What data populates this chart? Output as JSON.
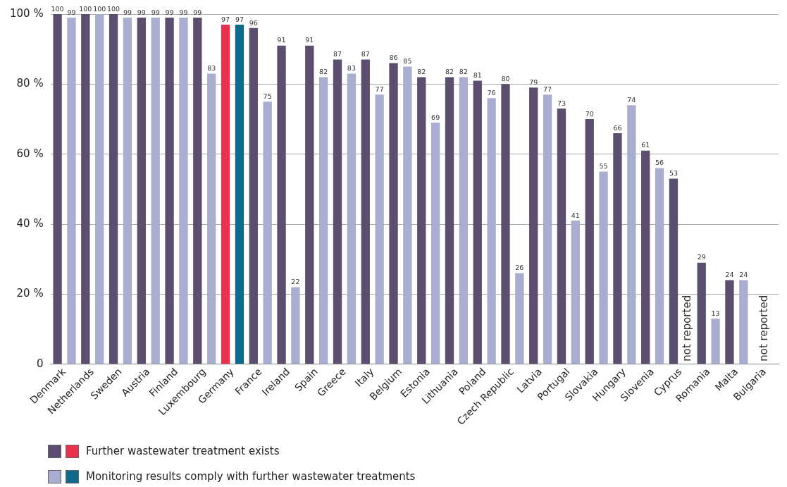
{
  "chart_data": {
    "type": "bar",
    "categories": [
      "Denmark",
      "Netherlands",
      "Sweden",
      "Austria",
      "Finland",
      "Luxembourg",
      "Germany",
      "France",
      "Ireland",
      "Spain",
      "Greece",
      "Italy",
      "Belgium",
      "Estonia",
      "Lithuania",
      "Poland",
      "Czech Republic",
      "Latvia",
      "Portugal",
      "Slovakia",
      "Hungary",
      "Slovenia",
      "Cyprus",
      "Romania",
      "Malta",
      "Bulgaria"
    ],
    "series": [
      {
        "name": "Further wastewater treatment exists",
        "color": "#5b4e6e",
        "colors": [
          "#5b4e6e",
          "#5b4e6e",
          "#5b4e6e",
          "#5b4e6e",
          "#5b4e6e",
          "#5b4e6e",
          "#e8304f",
          "#5b4e6e",
          "#5b4e6e",
          "#5b4e6e",
          "#5b4e6e",
          "#5b4e6e",
          "#5b4e6e",
          "#5b4e6e",
          "#5b4e6e",
          "#5b4e6e",
          "#5b4e6e",
          "#5b4e6e",
          "#5b4e6e",
          "#5b4e6e",
          "#5b4e6e",
          "#5b4e6e",
          "#5b4e6e",
          "#5b4e6e",
          "#5b4e6e",
          "#5b4e6e"
        ],
        "values": [
          100,
          100,
          100,
          99,
          99,
          99,
          97,
          96,
          91,
          91,
          87,
          87,
          86,
          82,
          82,
          81,
          80,
          79,
          73,
          70,
          66,
          61,
          53,
          29,
          24,
          null
        ]
      },
      {
        "name": "Monitoring results comply with further wastewater treatments",
        "color": "#a9aed0",
        "colors": [
          "#a9aed0",
          "#a9aed0",
          "#a9aed0",
          "#a9aed0",
          "#a9aed0",
          "#a9aed0",
          "#0e6a8a",
          "#a9aed0",
          "#a9aed0",
          "#a9aed0",
          "#a9aed0",
          "#a9aed0",
          "#a9aed0",
          "#a9aed0",
          "#a9aed0",
          "#a9aed0",
          "#a9aed0",
          "#a9aed0",
          "#a9aed0",
          "#a9aed0",
          "#a9aed0",
          "#a9aed0",
          "#a9aed0",
          "#a9aed0",
          "#a9aed0",
          "#a9aed0"
        ],
        "values": [
          99,
          100,
          99,
          99,
          99,
          83,
          97,
          75,
          22,
          82,
          83,
          77,
          85,
          69,
          82,
          76,
          26,
          77,
          41,
          55,
          74,
          56,
          null,
          13,
          24,
          null
        ]
      }
    ],
    "ylim": [
      0,
      100
    ],
    "yticks": [
      0,
      {
        "value": 20,
        "label": "20 %"
      },
      {
        "value": 40,
        "label": "40 %"
      },
      {
        "value": 60,
        "label": "60 %"
      },
      {
        "value": 80,
        "label": "80 %"
      },
      {
        "value": 100,
        "label": "100 %"
      }
    ],
    "grid": "y",
    "legend": "bottom left",
    "data_labels": true,
    "annotations": [
      "not reported",
      "not reported"
    ]
  }
}
